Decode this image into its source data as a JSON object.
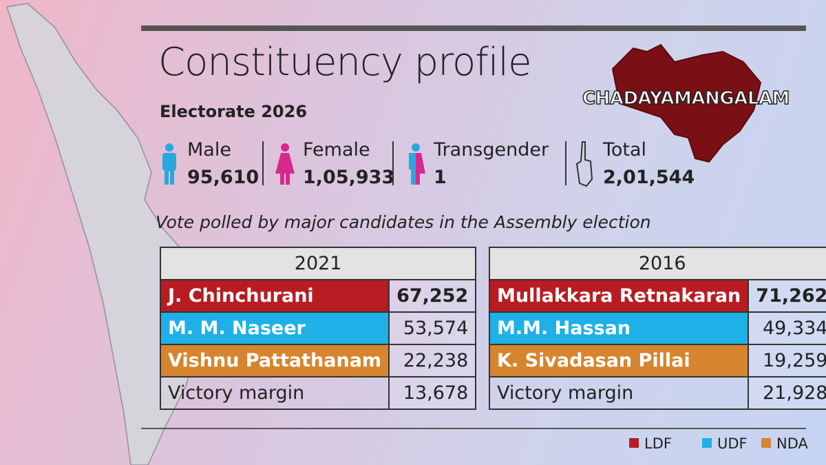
{
  "title": "Constituency profile",
  "constituency": "CHADAYAMANGALAM",
  "electorate": {
    "heading": "Electorate 2026",
    "items": [
      {
        "label": "Male",
        "value": "95,610",
        "color": "#29a8e0"
      },
      {
        "label": "Female",
        "value": "1,05,933",
        "color": "#d8288e"
      },
      {
        "label": "Transgender",
        "value": "1",
        "color": "#29a8e0"
      },
      {
        "label": "Total",
        "value": "2,01,544",
        "color": "#333333"
      }
    ]
  },
  "subtitle": "Vote polled by major candidates in the Assembly election",
  "tables": [
    {
      "year": "2021",
      "rows": [
        {
          "name": "J. Chinchurani",
          "votes": "67,252",
          "color": "#b81c22"
        },
        {
          "name": "M. M. Naseer",
          "votes": "53,574",
          "color": "#1eb0e6"
        },
        {
          "name": "Vishnu Pattathanam",
          "votes": "22,238",
          "color": "#d6852e"
        },
        {
          "name": "Victory margin",
          "votes": "13,678",
          "color": null
        }
      ]
    },
    {
      "year": "2016",
      "rows": [
        {
          "name": "Mullakkara Retnakaran",
          "votes": "71,262",
          "color": "#b81c22"
        },
        {
          "name": "M.M. Hassan",
          "votes": "49,334",
          "color": "#1eb0e6"
        },
        {
          "name": "K. Sivadasan Pillai",
          "votes": "19,259",
          "color": "#d6852e"
        },
        {
          "name": "Victory margin",
          "votes": "21,928",
          "color": null
        }
      ]
    }
  ],
  "legend": [
    {
      "label": "LDF",
      "color": "#b81c22"
    },
    {
      "label": "UDF",
      "color": "#1eb0e6"
    },
    {
      "label": "NDA",
      "color": "#d6852e"
    }
  ]
}
